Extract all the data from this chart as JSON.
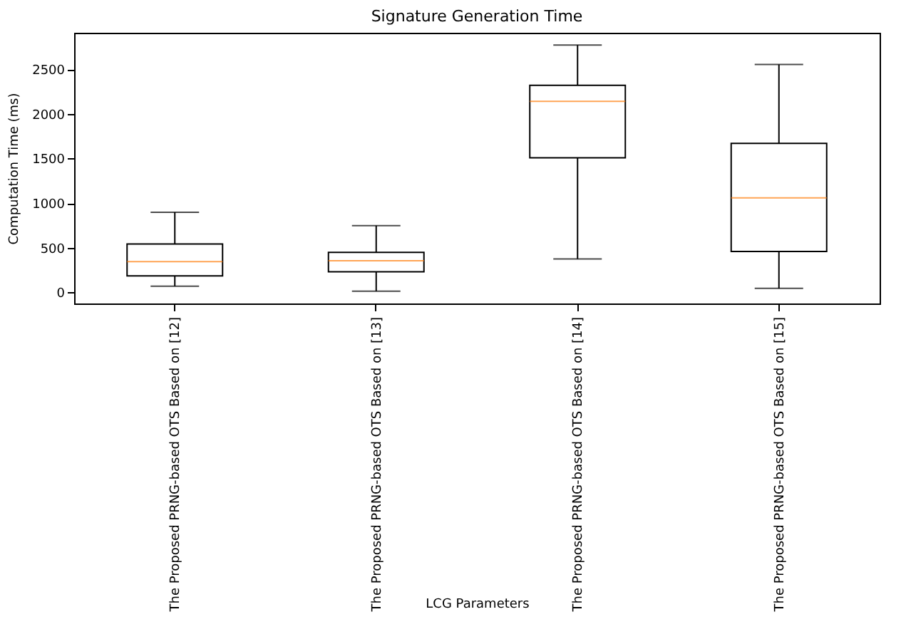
{
  "chart_data": {
    "type": "box",
    "title": "Signature Generation Time",
    "xlabel": "LCG Parameters",
    "ylabel": "Computation Time (ms)",
    "categories": [
      "The Proposed PRNG-based OTS Based on [12]",
      "The Proposed PRNG-based OTS Based on [13]",
      "The Proposed PRNG-based OTS Based on [14]",
      "The Proposed PRNG-based OTS Based on [15]"
    ],
    "boxes": [
      {
        "low": 67,
        "q1": 182,
        "median": 342,
        "q3": 540,
        "high": 897
      },
      {
        "low": 11,
        "q1": 228,
        "median": 353,
        "q3": 446,
        "high": 747
      },
      {
        "low": 373,
        "q1": 1508,
        "median": 2141,
        "q3": 2322,
        "high": 2773
      },
      {
        "low": 42,
        "q1": 456,
        "median": 1058,
        "q3": 1669,
        "high": 2555
      }
    ],
    "ylim": [
      -127,
      2911
    ],
    "yticks": [
      0,
      500,
      1000,
      1500,
      2000,
      2500
    ]
  }
}
